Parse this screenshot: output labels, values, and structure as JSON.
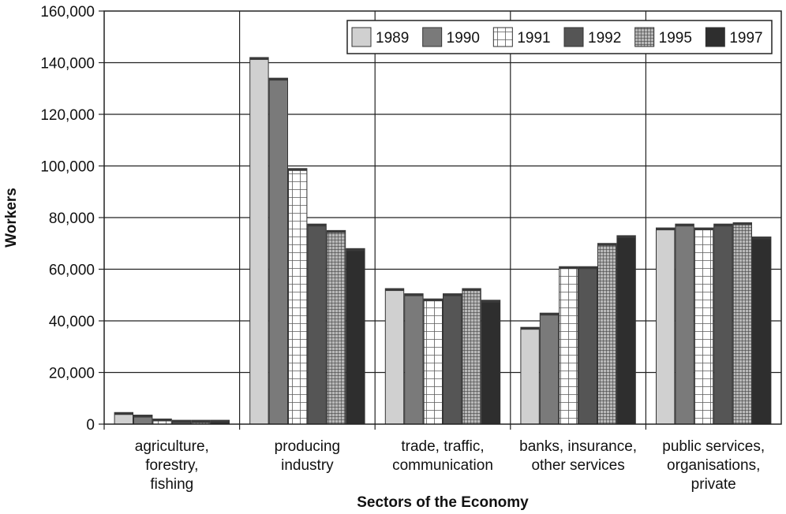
{
  "chart_data": {
    "type": "bar",
    "xlabel": "Sectors of the Economy",
    "ylabel": "Workers",
    "ylim": [
      0,
      160000
    ],
    "yticks": [
      0,
      20000,
      40000,
      60000,
      80000,
      100000,
      120000,
      140000,
      160000
    ],
    "ytick_labels": [
      "0",
      "20,000",
      "40,000",
      "60,000",
      "80,000",
      "100,000",
      "120,000",
      "140,000",
      "160,000"
    ],
    "grid": true,
    "legend_position": "top-right",
    "categories": [
      [
        "agriculture,",
        "forestry,",
        "fishing"
      ],
      [
        "producing",
        "industry"
      ],
      [
        "trade, traffic,",
        "communication"
      ],
      [
        "banks, insurance,",
        "other services"
      ],
      [
        "public services,",
        "organisations,",
        "private"
      ]
    ],
    "series": [
      {
        "name": "1989",
        "color": "#d0d0d0",
        "pattern": "solid",
        "values": [
          4500,
          142000,
          52500,
          37500,
          76000
        ]
      },
      {
        "name": "1990",
        "color": "#7a7a7a",
        "pattern": "solid",
        "values": [
          3500,
          134000,
          50500,
          43000,
          77500
        ]
      },
      {
        "name": "1991",
        "color": "#ffffff",
        "pattern": "grid-wide",
        "values": [
          2000,
          99000,
          48500,
          61000,
          76000
        ]
      },
      {
        "name": "1992",
        "color": "#555555",
        "pattern": "solid",
        "values": [
          1500,
          77500,
          50500,
          61000,
          77500
        ]
      },
      {
        "name": "1995",
        "color": "#8c8c8c",
        "pattern": "grid-fine",
        "values": [
          1500,
          75000,
          52500,
          70000,
          78000
        ]
      },
      {
        "name": "1997",
        "color": "#2e2e2e",
        "pattern": "solid",
        "values": [
          1500,
          68000,
          48000,
          73000,
          72500
        ]
      }
    ]
  }
}
